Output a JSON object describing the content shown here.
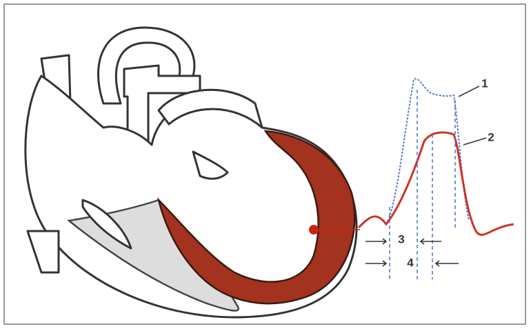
{
  "curves": [
    {
      "label": "1"
    },
    {
      "label": "2"
    }
  ],
  "intervals": [
    {
      "label": "3"
    },
    {
      "label": "4"
    }
  ]
}
